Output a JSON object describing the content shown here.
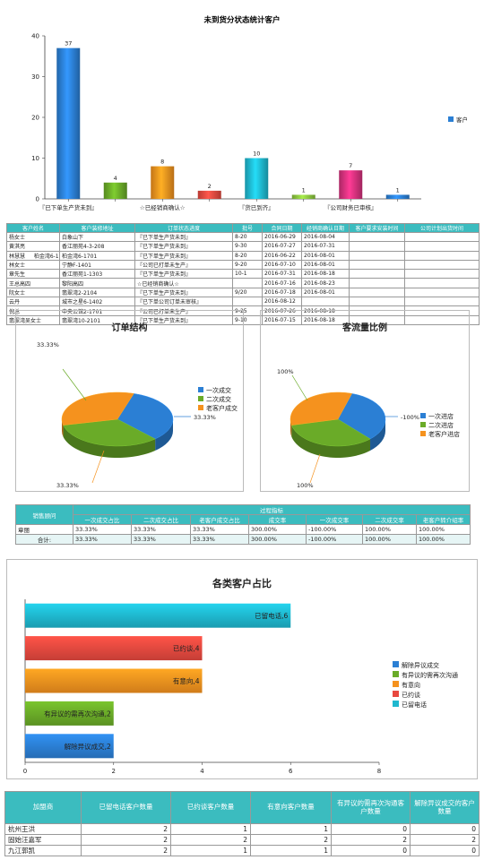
{
  "colors": {
    "teal": "#3bbcbf",
    "blue": "#2b7fd4",
    "green": "#6aab28",
    "orange": "#f5921e",
    "red": "#e8493f",
    "cyan": "#1fb8cf",
    "magenta": "#d6317d"
  },
  "chart_data": [
    {
      "type": "bar",
      "title": "未到货分状态统计客户",
      "categories": [
        "『已下单生产货未到』",
        "",
        "☆已经销商确认☆",
        "",
        "『货已到齐』",
        "",
        "『公司财务已审核』",
        ""
      ],
      "series": [
        {
          "name": "客户",
          "values": [
            37,
            4,
            8,
            2,
            10,
            1,
            7,
            1
          ]
        }
      ],
      "bar_colors": [
        "#2b7fd4",
        "#6aab28",
        "#f5921e",
        "#e8493f",
        "#1fb8cf",
        "#8cc63f",
        "#d6317d",
        "#2b7fd4"
      ],
      "ylim": [
        0,
        40
      ],
      "yticks": [
        "0",
        "10",
        "20",
        "30",
        "40"
      ],
      "legend_position": "right"
    },
    {
      "type": "pie",
      "title": "订单结构",
      "labels": [
        "一次成交",
        "二次成交",
        "老客户成交"
      ],
      "values": [
        33.33,
        33.33,
        33.33
      ],
      "data_labels": [
        "33.33%",
        "33.33%",
        "33.33%"
      ],
      "colors": [
        "#2b7fd4",
        "#6aab28",
        "#f5921e"
      ],
      "legend_position": "right"
    },
    {
      "type": "pie",
      "title": "客流量比例",
      "labels": [
        "一次进店",
        "二次进店",
        "老客户进店"
      ],
      "values": [
        33.33,
        33.33,
        33.33
      ],
      "data_labels": [
        "-100%",
        "100%",
        "100%"
      ],
      "colors": [
        "#2b7fd4",
        "#6aab28",
        "#f5921e"
      ],
      "legend_position": "right"
    },
    {
      "type": "bar",
      "orientation": "horizontal",
      "title": "各类客户占比",
      "categories": [
        "已留电话",
        "已约谈",
        "有意向",
        "有异议的需再次沟通",
        "解除异议成交"
      ],
      "values": [
        6,
        4,
        4,
        2,
        2
      ],
      "data_labels": [
        "已留电话,6",
        "已约谈,4",
        "有意向,4",
        "有异议的需再次沟通,2",
        "解除异议成交,2"
      ],
      "bar_colors": [
        "#1fb8cf",
        "#e8493f",
        "#f5921e",
        "#6aab28",
        "#2b7fd4"
      ],
      "legend_items": [
        "解除异议成交",
        "有异议的需再次沟通",
        "有意向",
        "已约谈",
        "已留电话"
      ],
      "legend_colors": [
        "#2b7fd4",
        "#6aab28",
        "#f5921e",
        "#e8493f",
        "#1fb8cf"
      ],
      "xlim": [
        0,
        8
      ],
      "xticks": [
        "0",
        "2",
        "4",
        "6",
        "8"
      ],
      "legend_position": "right"
    }
  ],
  "table1": {
    "headers": [
      "客户姓名",
      "客户装修地址",
      "订单状态进度",
      "批号",
      "合同日期",
      "经销商确认日期",
      "客户要求安装时间",
      "公司计划出货时间"
    ],
    "rows": [
      [
        "杨女士",
        "白象山下",
        "『已下单生产货未到』",
        "8-20",
        "2016-06-29",
        "2016-08-04",
        "",
        ""
      ],
      [
        "黄淇亮",
        "香江丽苑4-3-208",
        "『已下单生产货未到』",
        "9-30",
        "2016-07-27",
        "2016-07-31",
        "",
        ""
      ],
      [
        "林慧慧 　 柏金湾6-1701",
        "柏金湾6-1701",
        "『已下单生产货未到』",
        "8-20",
        "2016-06-22",
        "2016-08-01",
        "",
        ""
      ],
      [
        "林女士",
        "宁静F-1401",
        "『公司已打单未生产』",
        "9-20",
        "2016-07-10",
        "2016-08-01",
        "",
        ""
      ],
      [
        "章先生",
        "香江丽苑1-1303",
        "『已下单生产货未到』",
        "10-1",
        "2016-07-31",
        "2016-08-18",
        "",
        ""
      ],
      [
        "王总高四",
        "黎阳高四",
        "☆已经销商确认☆",
        "",
        "2016-07-16",
        "2016-08-23",
        "",
        ""
      ],
      [
        "阮女士",
        "翡翠湾2-2104",
        "『已下单生产货未到』",
        "9/20",
        "2016-07-18",
        "2016-08-01",
        "",
        ""
      ],
      [
        "云丹",
        "城市之星6-1402",
        "『已下单公司订单未审核』",
        "",
        "2016-08-12",
        "",
        "",
        ""
      ],
      [
        "倪总",
        "中央公馆2-1701",
        "『公司已打单未生产』",
        "9-25",
        "2016-07-26",
        "2016-08-18",
        "",
        ""
      ],
      [
        "翡翠湾吴女士",
        "翡翠湾10-2101",
        "『已下单生产货未到』",
        "9-10",
        "2016-07-15",
        "2016-08-18",
        "",
        ""
      ]
    ]
  },
  "table2": {
    "col_sales": "销售顾问",
    "group_header": "过程指标",
    "headers": [
      "一次成交占比",
      "二次成交占比",
      "老客户成交占比",
      "成交率",
      "一次成交率",
      "二次成交率",
      "老客户转介绍率"
    ],
    "rows": [
      {
        "name": "章丽",
        "values": [
          "33.33%",
          "33.33%",
          "33.33%",
          "300.00%",
          "-100.00%",
          "100.00%",
          "100.00%"
        ]
      }
    ],
    "total": {
      "name": "合计:",
      "values": [
        "33.33%",
        "33.33%",
        "33.33%",
        "300.00%",
        "-100.00%",
        "100.00%",
        "100.00%"
      ]
    }
  },
  "table3": {
    "headers": [
      "加盟商",
      "已留电话客户数量",
      "已约谈客户数量",
      "有意向客户数量",
      "有异议的需再次沟通客户数量",
      "解除异议成交的客户数量"
    ],
    "rows": [
      [
        "杭州王洪",
        "2",
        "1",
        "1",
        "0",
        "0"
      ],
      [
        "固始汪嘉军",
        "2",
        "2",
        "2",
        "2",
        "2"
      ],
      [
        "九江郭凯",
        "2",
        "1",
        "1",
        "0",
        "0"
      ]
    ]
  }
}
